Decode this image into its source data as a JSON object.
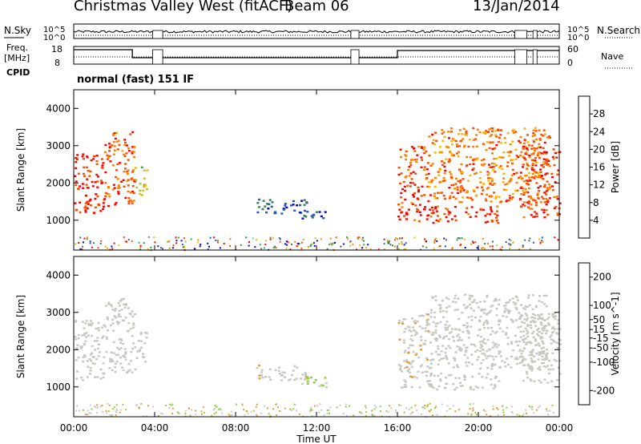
{
  "header": {
    "title": "Christmas Valley West (fitACF)",
    "beam": "Beam 06",
    "date": "13/Jan/2014"
  },
  "status": {
    "nsky_label": "N.Sky",
    "nsearch_label": "N.Search",
    "freq_label_line1": "Freq.",
    "freq_label_line2": "[MHz]",
    "nave_label": "Nave",
    "cpid_label": "CPID",
    "cpid_text": "normal (fast) 151 IF",
    "noise_ticks": [
      "10^5",
      "10^0"
    ],
    "freq_ticks": [
      "18",
      "8"
    ],
    "nave_ticks": [
      "60",
      "0"
    ]
  },
  "colors": {
    "power_scale": [
      "#0000e0",
      "#2a52b8",
      "#2e7d5a",
      "#3aa64a",
      "#a6c832",
      "#ffb400",
      "#ff8000",
      "#ff4d00",
      "#ff0000"
    ],
    "velocity_scale": [
      "#ee0000",
      "#ff4400",
      "#ff8000",
      "#e89a2c",
      "#c8c8c0",
      "#c8c8c0",
      "#90d040",
      "#2e8b57",
      "#2a52b8",
      "#0000e0"
    ]
  },
  "chart_data": [
    {
      "type": "heatmap",
      "title": "Power",
      "xlabel": "",
      "ylabel": "Slant Range [km]",
      "xlim": [
        "00:00",
        "00:00"
      ],
      "ylim": [
        200,
        4500
      ],
      "x_ticks": [
        "00:00",
        "04:00",
        "08:00",
        "12:00",
        "16:00",
        "20:00",
        "00:00"
      ],
      "y_ticks": [
        1000,
        2000,
        3000,
        4000
      ],
      "colorbar": {
        "label": "Power [dB]",
        "ticks": [
          4,
          8,
          12,
          16,
          20,
          24,
          28
        ],
        "range": [
          0,
          32
        ]
      },
      "regions": [
        {
          "t": [
            0.0,
            1.5
          ],
          "range": [
            1200,
            2800
          ],
          "value": 30
        },
        {
          "t": [
            1.5,
            3.0
          ],
          "range": [
            1400,
            3400
          ],
          "value": 26
        },
        {
          "t": [
            3.0,
            3.6
          ],
          "range": [
            1700,
            2500
          ],
          "value": 16
        },
        {
          "t": [
            9.0,
            11.5
          ],
          "range": [
            1200,
            1600
          ],
          "value": 6
        },
        {
          "t": [
            11.0,
            12.5
          ],
          "range": [
            1000,
            1300
          ],
          "value": 4
        },
        {
          "t": [
            16.0,
            17.5
          ],
          "range": [
            1000,
            3000
          ],
          "value": 28
        },
        {
          "t": [
            17.5,
            21.0
          ],
          "range": [
            950,
            1400
          ],
          "value": 29
        },
        {
          "t": [
            17.5,
            23.5
          ],
          "range": [
            1500,
            3500
          ],
          "value": 24
        },
        {
          "t": [
            22.0,
            24.0
          ],
          "range": [
            1100,
            3000
          ],
          "value": 27
        }
      ]
    },
    {
      "type": "heatmap",
      "title": "Velocity",
      "xlabel": "Time UT",
      "ylabel": "Slant Range [km]",
      "xlim": [
        "00:00",
        "00:00"
      ],
      "ylim": [
        200,
        4500
      ],
      "x_ticks": [
        "00:00",
        "04:00",
        "08:00",
        "12:00",
        "16:00",
        "20:00",
        "00:00"
      ],
      "y_ticks": [
        1000,
        2000,
        3000,
        4000
      ],
      "colorbar": {
        "label": "Velocity [m s^-1]",
        "ticks": [
          200,
          100,
          50,
          15,
          -15,
          -50,
          -100,
          -200
        ],
        "range": [
          -250,
          250
        ]
      },
      "regions": [
        {
          "t": [
            0.0,
            1.5
          ],
          "range": [
            1200,
            2800
          ],
          "value": 0
        },
        {
          "t": [
            1.5,
            3.0
          ],
          "range": [
            1400,
            3400
          ],
          "value": 0
        },
        {
          "t": [
            3.0,
            3.6
          ],
          "range": [
            1700,
            2500
          ],
          "value": 0
        },
        {
          "t": [
            9.0,
            11.5
          ],
          "range": [
            1200,
            1600
          ],
          "value": 40
        },
        {
          "t": [
            11.0,
            12.5
          ],
          "range": [
            1000,
            1300
          ],
          "value": -60
        },
        {
          "t": [
            16.0,
            17.5
          ],
          "range": [
            1000,
            3000
          ],
          "value": 30
        },
        {
          "t": [
            17.5,
            21.0
          ],
          "range": [
            950,
            1400
          ],
          "value": 0
        },
        {
          "t": [
            17.5,
            23.5
          ],
          "range": [
            1500,
            3500
          ],
          "value": 0
        },
        {
          "t": [
            22.0,
            24.0
          ],
          "range": [
            1100,
            3000
          ],
          "value": 0
        }
      ]
    }
  ]
}
